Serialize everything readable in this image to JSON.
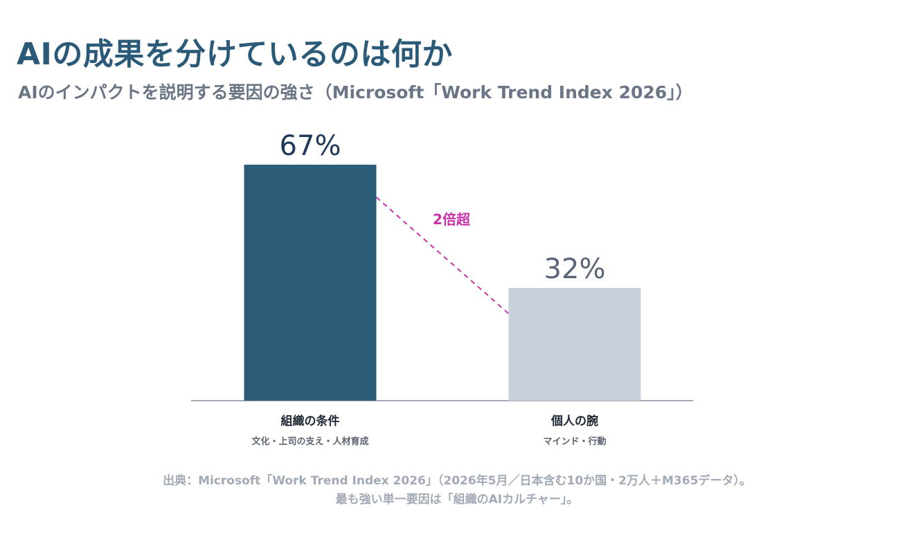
{
  "header": {
    "title": "AIの成果を分けているのは何か",
    "subtitle": "AIのインパクトを説明する要因の強さ（Microsoft「Work Trend Index 2026」）"
  },
  "colors": {
    "title": "#2a5a78",
    "subtitle": "#6a7585",
    "bar_primary": "#2b5c78",
    "bar_secondary": "#c8d0db",
    "value_primary": "#1e3957",
    "value_secondary": "#5a6578",
    "annotation": "#c832a8",
    "axis": "#a3aab5",
    "category": "#1f2833",
    "category_sub": "#5c6470",
    "footnote": "#a2aab6"
  },
  "chart_data": {
    "type": "bar",
    "categories": [
      "組織の条件",
      "個人の腕"
    ],
    "category_sublabels": [
      "文化・上司の支え・人材育成",
      "マインド・行動"
    ],
    "values": [
      67,
      32
    ],
    "value_labels": [
      "67%",
      "32%"
    ],
    "ylim": [
      0,
      67
    ],
    "grid": false,
    "legend": "none",
    "annotation": {
      "text": "2倍超",
      "style": "dashed connector from first bar to second bar"
    }
  },
  "footnote": {
    "line1": "出典：Microsoft「Work Trend Index 2026」（2026年5月／日本含む10か国・2万人＋M365データ）。",
    "line2": "最も強い単一要因は「組織のAIカルチャー」。"
  }
}
